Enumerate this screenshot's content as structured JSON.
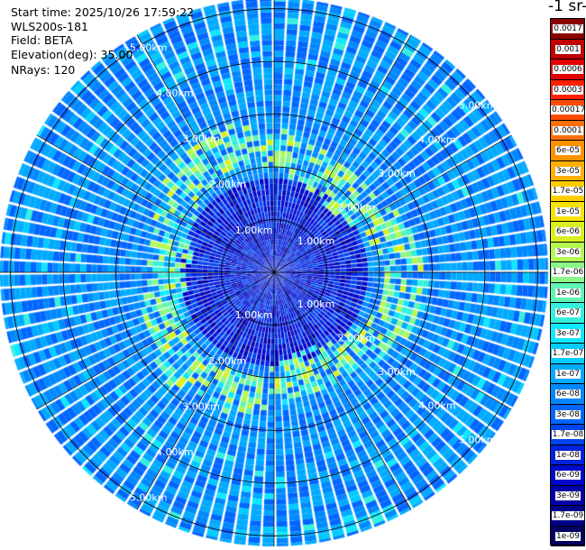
{
  "info": {
    "start_time": "Start time: 2025/10/26 17:59:22",
    "instrument": "WLS200s-181",
    "field": "Field: BETA",
    "elevation": "Elevation(deg): 35.00",
    "nrays": "NRays: 120"
  },
  "chart_data": {
    "type": "heatmap",
    "projection": "polar-ppi",
    "title": "",
    "ring_labels": [
      "1.00km",
      "2.00km",
      "3.00km",
      "4.00km",
      "5.00km"
    ],
    "ring_ranges_km": [
      1,
      2,
      3,
      4,
      5
    ],
    "max_range_km": 5.2,
    "n_rays": 120,
    "colorbar": {
      "title": "-1 sr-",
      "ticks": [
        "0.0017",
        "0.001",
        "0.0006",
        "0.0003",
        "0.00017",
        "0.0001",
        "6e-05",
        "3e-05",
        "1.7e-05",
        "1e-05",
        "6e-06",
        "3e-06",
        "1.7e-06",
        "1e-06",
        "6e-07",
        "3e-07",
        "1.7e-07",
        "1e-07",
        "6e-08",
        "3e-08",
        "1.7e-08",
        "1e-08",
        "6e-09",
        "3e-09",
        "1.7e-09",
        "1e-09"
      ],
      "colors": [
        "#8b0000",
        "#c00000",
        "#e40000",
        "#ff2000",
        "#ff4a00",
        "#ff6e00",
        "#ff9200",
        "#ffb000",
        "#ffcc00",
        "#f4e400",
        "#d8f020",
        "#b4f850",
        "#8cf888",
        "#60f4b4",
        "#34f0dc",
        "#10e8ff",
        "#00ccff",
        "#00aaff",
        "#0088ff",
        "#0066ff",
        "#0044ee",
        "#0022dd",
        "#0008cc",
        "#0000aa",
        "#00008a",
        "#000060"
      ]
    },
    "field_description_bins": {
      "background_bin_index": 18,
      "aerosol_ring_range_km": [
        1.8,
        2.6
      ],
      "aerosol_ring_peak_bin_index": 10,
      "inner_low_range_km": [
        0.0,
        1.7
      ],
      "inner_low_bin_index": 21
    }
  }
}
